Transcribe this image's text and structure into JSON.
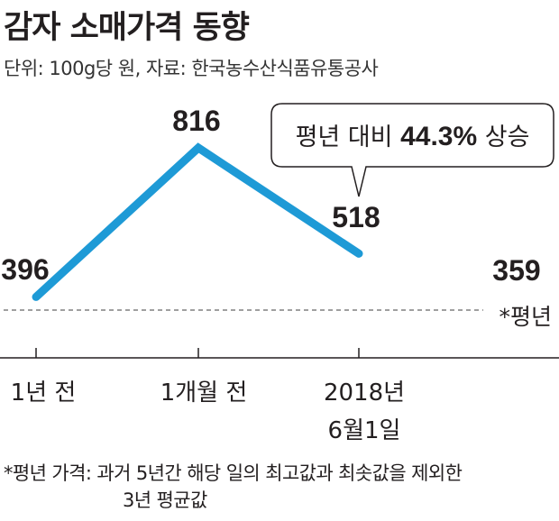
{
  "title": "감자 소매가격 동향",
  "subtitle": "단위: 100g당 원, 자료: 한국농수산식품유통공사",
  "callout": {
    "prefix": "평년 대비 ",
    "highlight": "44.3%",
    "suffix": " 상승"
  },
  "note": {
    "line1": "*평년 가격: 과거 5년간 해당 일의 최고값과 최솟값을 제외한",
    "line2": "3년 평균값"
  },
  "chart_data": {
    "type": "line",
    "title": "감자 소매가격 동향",
    "unit": "100g당 원",
    "categories": [
      "1년 전",
      "1개월 전",
      "2018년 6월1일"
    ],
    "category_lines": [
      [
        "1년 전"
      ],
      [
        "1개월 전"
      ],
      [
        "2018년",
        "6월1일"
      ]
    ],
    "values": [
      396,
      816,
      518
    ],
    "value_labels": [
      "396",
      "816",
      "518"
    ],
    "reference": {
      "value": 359,
      "value_label": "359",
      "label": "*평년",
      "style": "dashed"
    },
    "ylim": [
      300,
      900
    ],
    "line_color": "#1e9ad6",
    "grid": false,
    "legend": "none"
  }
}
